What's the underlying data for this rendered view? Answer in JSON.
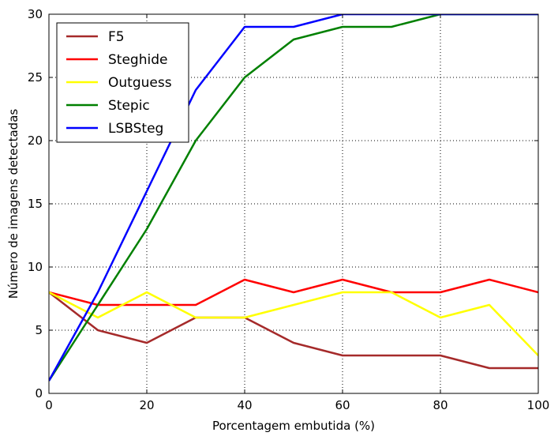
{
  "chart_data": {
    "type": "line",
    "title": "",
    "xlabel": "Porcentagem embutida (%)",
    "ylabel": "Número de imagens detectadas",
    "xlim": [
      0,
      100
    ],
    "ylim": [
      0,
      30
    ],
    "x_ticks": [
      "0",
      "20",
      "40",
      "60",
      "80",
      "100"
    ],
    "y_ticks": [
      "0",
      "5",
      "10",
      "15",
      "20",
      "25",
      "30"
    ],
    "grid": true,
    "legend_position": "upper-left",
    "x": [
      0,
      10,
      20,
      30,
      40,
      50,
      60,
      70,
      80,
      90,
      100
    ],
    "series": [
      {
        "name": "F5",
        "color": "#a52a2a",
        "values": [
          8,
          5,
          4,
          6,
          6,
          4,
          3,
          3,
          3,
          2,
          2
        ]
      },
      {
        "name": "Steghide",
        "color": "#ff0000",
        "values": [
          8,
          7,
          7,
          7,
          9,
          8,
          9,
          8,
          8,
          9,
          8
        ]
      },
      {
        "name": "Outguess",
        "color": "#ffff00",
        "values": [
          8,
          6,
          8,
          6,
          6,
          7,
          8,
          8,
          6,
          7,
          3
        ]
      },
      {
        "name": "Stepic",
        "color": "#008000",
        "values": [
          1,
          7,
          13,
          20,
          25,
          28,
          29,
          29,
          30,
          30,
          30
        ]
      },
      {
        "name": "LSBSteg",
        "color": "#0000ff",
        "values": [
          1,
          8,
          16,
          24,
          29,
          29,
          30,
          30,
          30,
          30,
          30
        ]
      }
    ]
  }
}
